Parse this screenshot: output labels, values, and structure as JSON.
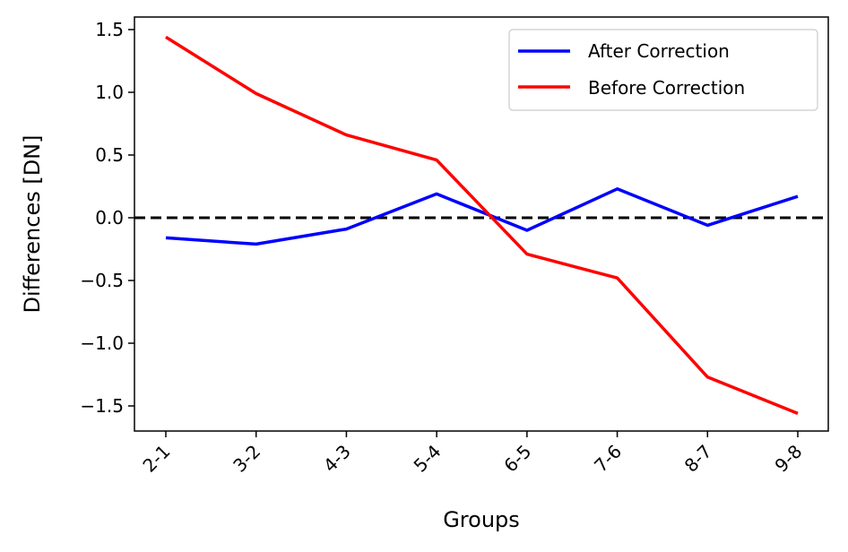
{
  "chart_data": {
    "type": "line",
    "title": "",
    "xlabel": "Groups",
    "ylabel": "Differences [DN]",
    "categories": [
      "2-1",
      "3-2",
      "4-3",
      "5-4",
      "6-5",
      "7-6",
      "8-7",
      "9-8"
    ],
    "ylim": [
      -1.7,
      1.6
    ],
    "yticks": [
      1.5,
      1.0,
      0.5,
      0.0,
      -0.5,
      -1.0,
      -1.5
    ],
    "ytick_labels": [
      "1.5",
      "1.0",
      "0.5",
      "0.0",
      "−0.5",
      "−1.0",
      "−1.5"
    ],
    "reference_line": {
      "y": 0.0,
      "style": "dashed",
      "color": "#000000"
    },
    "grid": false,
    "legend_position": "top-right",
    "series": [
      {
        "name": "After Correction",
        "color": "#0000ff",
        "values": [
          -0.16,
          -0.21,
          -0.09,
          0.19,
          -0.1,
          0.23,
          -0.06,
          0.17
        ]
      },
      {
        "name": "Before Correction",
        "color": "#ff0000",
        "values": [
          1.44,
          0.99,
          0.66,
          0.46,
          -0.29,
          -0.48,
          -1.27,
          -1.56
        ]
      }
    ]
  }
}
